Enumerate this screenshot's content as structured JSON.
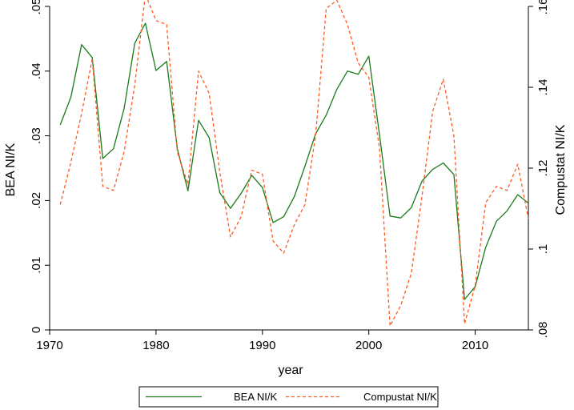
{
  "chart_data": {
    "type": "line",
    "xlabel": "year",
    "ylabel_left": "BEA NI/K",
    "ylabel_right": "Compustat NI/K",
    "xlim": [
      1970,
      2015
    ],
    "ylim_left": [
      0,
      0.05
    ],
    "ylim_right": [
      0.08,
      0.16
    ],
    "x_ticks": [
      "1970",
      "1980",
      "1990",
      "2000",
      "2010"
    ],
    "y_left_ticks": [
      "0",
      ".01",
      ".02",
      ".03",
      ".04",
      ".05"
    ],
    "y_right_ticks": [
      ".08",
      ".1",
      ".12",
      ".14",
      ".16"
    ],
    "grid": false,
    "legend_position": "bottom",
    "x": [
      1971,
      1972,
      1973,
      1974,
      1975,
      1976,
      1977,
      1978,
      1979,
      1980,
      1981,
      1982,
      1983,
      1984,
      1985,
      1986,
      1987,
      1988,
      1989,
      1990,
      1991,
      1992,
      1993,
      1994,
      1995,
      1996,
      1997,
      1998,
      1999,
      2000,
      2001,
      2002,
      2003,
      2004,
      2005,
      2006,
      2007,
      2008,
      2009,
      2010,
      2011,
      2012,
      2013,
      2014,
      2015
    ],
    "series": [
      {
        "name": "BEA NI/K",
        "axis": "left",
        "color": "#1a7a1a",
        "dash": "solid",
        "values": [
          0.0317,
          0.036,
          0.0441,
          0.0421,
          0.0265,
          0.028,
          0.0342,
          0.0443,
          0.0474,
          0.0401,
          0.0415,
          0.028,
          0.0215,
          0.0324,
          0.0297,
          0.0212,
          0.0188,
          0.0211,
          0.0239,
          0.022,
          0.0166,
          0.0175,
          0.0206,
          0.0253,
          0.0303,
          0.0332,
          0.0372,
          0.04,
          0.0395,
          0.0423,
          0.0302,
          0.0176,
          0.0173,
          0.0189,
          0.023,
          0.0248,
          0.0258,
          0.024,
          0.0047,
          0.0067,
          0.0128,
          0.0168,
          0.0184,
          0.0209,
          0.0196
        ]
      },
      {
        "name": "Compustat NI/K",
        "axis": "right",
        "color": "#ff5a1f",
        "dash": "dashed",
        "values": [
          0.111,
          0.1215,
          0.1335,
          0.147,
          0.1155,
          0.1145,
          0.124,
          0.1405,
          0.163,
          0.1565,
          0.1555,
          0.124,
          0.116,
          0.144,
          0.1385,
          0.119,
          0.103,
          0.108,
          0.1195,
          0.1185,
          0.102,
          0.099,
          0.106,
          0.111,
          0.128,
          0.1595,
          0.1615,
          0.1555,
          0.146,
          0.1425,
          0.125,
          0.081,
          0.086,
          0.094,
          0.113,
          0.134,
          0.142,
          0.128,
          0.0815,
          0.091,
          0.1115,
          0.1155,
          0.1145,
          0.121,
          0.1075
        ]
      }
    ]
  }
}
